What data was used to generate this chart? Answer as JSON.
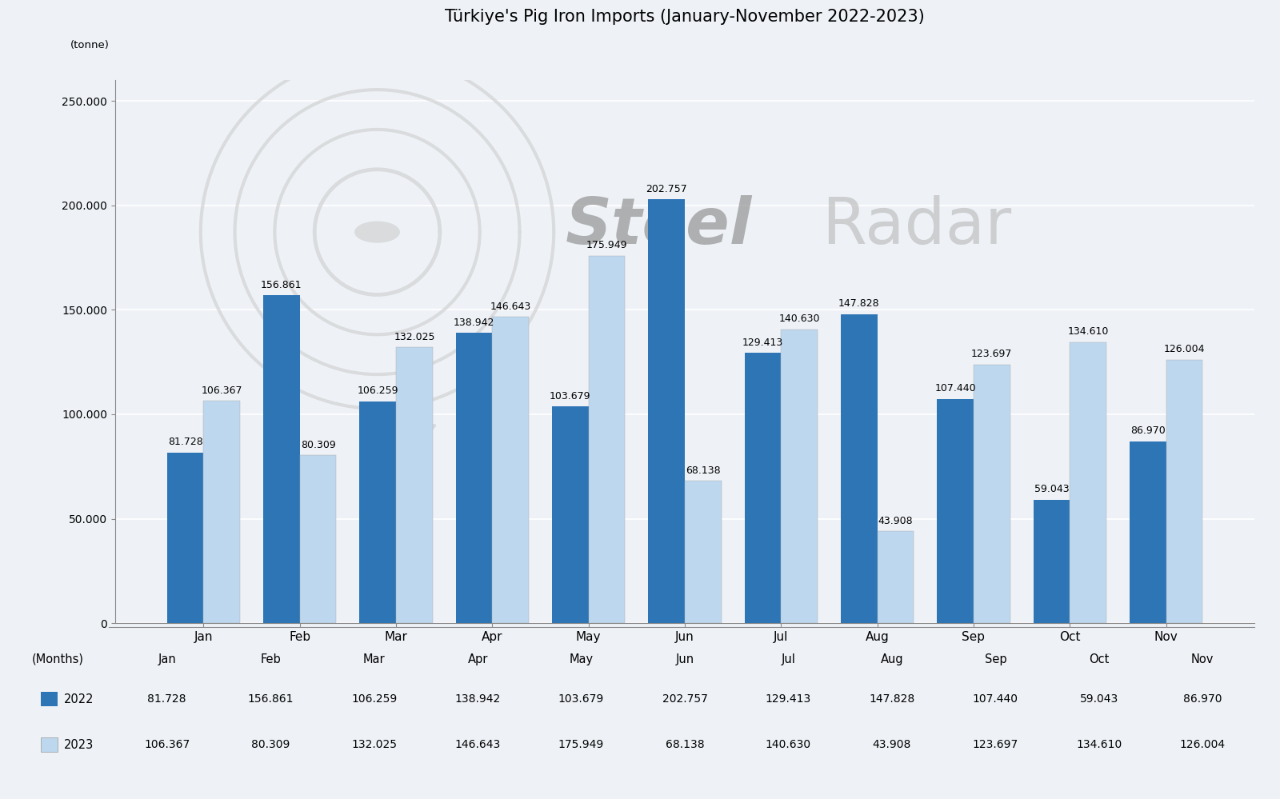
{
  "title": "Türkiye's Pig Iron Imports (January-November 2022-2023)",
  "ylabel": "(tonne)",
  "xlabel": "(Months)",
  "months": [
    "Jan",
    "Feb",
    "Mar",
    "Apr",
    "May",
    "Jun",
    "Jul",
    "Aug",
    "Sep",
    "Oct",
    "Nov"
  ],
  "values_2022": [
    81728,
    156861,
    106259,
    138942,
    103679,
    202757,
    129413,
    147828,
    107440,
    59043,
    86970
  ],
  "values_2023": [
    106367,
    80309,
    132025,
    146643,
    175949,
    68138,
    140630,
    43908,
    123697,
    134610,
    126004
  ],
  "labels_2022": [
    "81.728",
    "156.861",
    "106.259",
    "138.942",
    "103.679",
    "202.757",
    "129.413",
    "147.828",
    "107.440",
    "59.043",
    "86.970"
  ],
  "labels_2023": [
    "106.367",
    "80.309",
    "132.025",
    "146.643",
    "175.949",
    "68.138",
    "140.630",
    "43.908",
    "123.697",
    "134.610",
    "126.004"
  ],
  "color_2022": "#2E75B6",
  "color_2023": "#BDD7EE",
  "background_color": "#EEF2F7",
  "ylim": [
    0,
    260000
  ],
  "yticks": [
    0,
    50000,
    100000,
    150000,
    200000,
    250000
  ],
  "ytick_labels": [
    "0",
    "50.000",
    "100.000",
    "150.000",
    "200.000",
    "250.000"
  ],
  "legend_2022": "2022",
  "legend_2023": "2023",
  "title_fontsize": 15,
  "bar_width": 0.38,
  "watermark_color": "#cccccc",
  "watermark_alpha": 0.6
}
